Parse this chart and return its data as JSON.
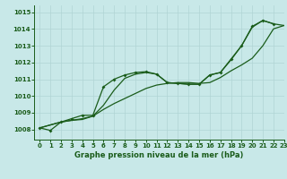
{
  "xlabel": "Graphe pression niveau de la mer (hPa)",
  "bg_color": "#c8e8e8",
  "line_color": "#1a5c1a",
  "xlim": [
    -0.5,
    23
  ],
  "ylim": [
    1007.4,
    1015.4
  ],
  "yticks": [
    1008,
    1009,
    1010,
    1011,
    1012,
    1013,
    1014,
    1015
  ],
  "xticks": [
    0,
    1,
    2,
    3,
    4,
    5,
    6,
    7,
    8,
    9,
    10,
    11,
    12,
    13,
    14,
    15,
    16,
    17,
    18,
    19,
    20,
    21,
    22,
    23
  ],
  "series1_x": [
    0,
    1,
    2,
    3,
    4,
    5,
    6,
    7,
    8,
    9,
    10,
    11,
    12,
    13,
    14,
    15,
    16,
    17,
    18,
    19,
    20,
    21,
    22
  ],
  "series1_y": [
    1008.1,
    1007.95,
    1008.45,
    1008.65,
    1008.85,
    1008.85,
    1010.55,
    1011.0,
    1011.25,
    1011.4,
    1011.45,
    1011.3,
    1010.8,
    1010.75,
    1010.7,
    1010.7,
    1011.25,
    1011.4,
    1012.2,
    1013.0,
    1014.15,
    1014.5,
    1014.3
  ],
  "series2_x": [
    0,
    2,
    3,
    4,
    5,
    6,
    7,
    8,
    9,
    10,
    11,
    12,
    13,
    14,
    15,
    16,
    17,
    18,
    19,
    20,
    21,
    22,
    23
  ],
  "series2_y": [
    1008.1,
    1008.45,
    1008.55,
    1008.6,
    1008.8,
    1009.2,
    1009.55,
    1009.85,
    1010.15,
    1010.45,
    1010.65,
    1010.75,
    1010.8,
    1010.8,
    1010.75,
    1010.8,
    1011.1,
    1011.5,
    1011.85,
    1012.25,
    1013.0,
    1014.0,
    1014.2
  ],
  "series3_x": [
    0,
    2,
    3,
    4,
    5,
    6,
    7,
    8,
    9,
    10,
    11,
    12,
    13,
    14,
    15,
    16,
    17,
    18,
    19,
    20,
    21,
    22,
    23
  ],
  "series3_y": [
    1008.1,
    1008.45,
    1008.55,
    1008.65,
    1008.8,
    1009.45,
    1010.35,
    1011.05,
    1011.3,
    1011.4,
    1011.3,
    1010.8,
    1010.75,
    1010.7,
    1010.7,
    1011.25,
    1011.4,
    1012.15,
    1013.0,
    1014.1,
    1014.5,
    1014.3,
    1014.2
  ]
}
